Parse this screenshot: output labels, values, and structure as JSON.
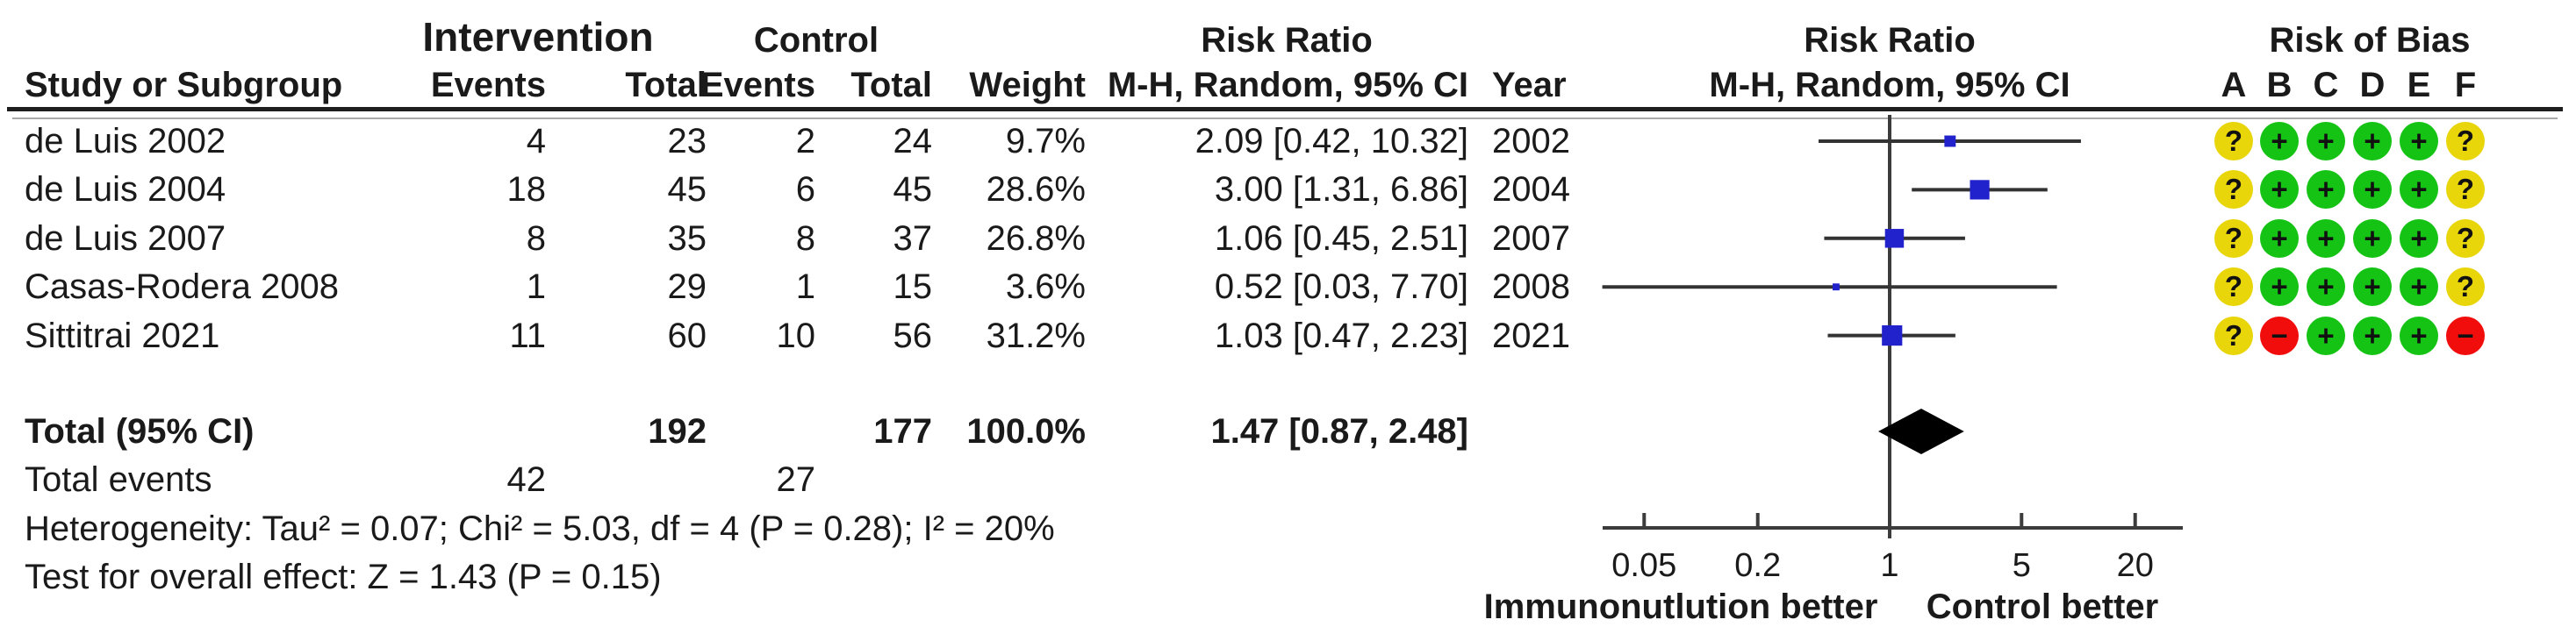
{
  "group_header": {
    "intervention": "Intervention",
    "control": "Control",
    "risk_ratio_table": "Risk Ratio",
    "risk_ratio_plot": "Risk Ratio",
    "risk_of_bias": "Risk of Bias"
  },
  "column_header": {
    "study": "Study or Subgroup",
    "int_events": "Events",
    "int_total": "Total",
    "ctl_events": "Events",
    "ctl_total": "Total",
    "weight": "Weight",
    "mh_random_ci": "M-H, Random, 95% CI",
    "year": "Year",
    "mh_random_ci_plot": "M-H, Random, 95% CI",
    "rob_letters": [
      "A",
      "B",
      "C",
      "D",
      "E",
      "F"
    ]
  },
  "chart_data": {
    "type": "forest",
    "effect_measure": "Risk Ratio",
    "model": "M-H, Random, 95% CI",
    "x_scale": "log",
    "x_ticks": [
      0.05,
      0.2,
      1,
      5,
      20
    ],
    "x_tick_labels": [
      "0.05",
      "0.2",
      "1",
      "5",
      "20"
    ],
    "null_line": 1,
    "footer_left": "Immunonutlution better",
    "footer_right": "Control better",
    "studies": [
      {
        "study": "de Luis 2002",
        "int_events": "4",
        "int_total": "23",
        "ctl_events": "2",
        "ctl_total": "24",
        "weight_label": "9.7%",
        "weight_pct": 9.7,
        "rr": 2.09,
        "ci_low": 0.42,
        "ci_high": 10.32,
        "ci_label": "2.09 [0.42, 10.32]",
        "year": "2002",
        "risk_of_bias": [
          "unclear",
          "low",
          "low",
          "low",
          "low",
          "unclear"
        ]
      },
      {
        "study": "de Luis 2004",
        "int_events": "18",
        "int_total": "45",
        "ctl_events": "6",
        "ctl_total": "45",
        "weight_label": "28.6%",
        "weight_pct": 28.6,
        "rr": 3.0,
        "ci_low": 1.31,
        "ci_high": 6.86,
        "ci_label": "3.00 [1.31, 6.86]",
        "year": "2004",
        "risk_of_bias": [
          "unclear",
          "low",
          "low",
          "low",
          "low",
          "unclear"
        ]
      },
      {
        "study": "de Luis 2007",
        "int_events": "8",
        "int_total": "35",
        "ctl_events": "8",
        "ctl_total": "37",
        "weight_label": "26.8%",
        "weight_pct": 26.8,
        "rr": 1.06,
        "ci_low": 0.45,
        "ci_high": 2.51,
        "ci_label": "1.06 [0.45, 2.51]",
        "year": "2007",
        "risk_of_bias": [
          "unclear",
          "low",
          "low",
          "low",
          "low",
          "unclear"
        ]
      },
      {
        "study": "Casas-Rodera 2008",
        "int_events": "1",
        "int_total": "29",
        "ctl_events": "1",
        "ctl_total": "15",
        "weight_label": "3.6%",
        "weight_pct": 3.6,
        "rr": 0.52,
        "ci_low": 0.03,
        "ci_high": 7.7,
        "ci_label": "0.52 [0.03, 7.70]",
        "year": "2008",
        "risk_of_bias": [
          "unclear",
          "low",
          "low",
          "low",
          "low",
          "unclear"
        ]
      },
      {
        "study": "Sittitrai 2021",
        "int_events": "11",
        "int_total": "60",
        "ctl_events": "10",
        "ctl_total": "56",
        "weight_label": "31.2%",
        "weight_pct": 31.2,
        "rr": 1.03,
        "ci_low": 0.47,
        "ci_high": 2.23,
        "ci_label": "1.03 [0.47, 2.23]",
        "year": "2021",
        "risk_of_bias": [
          "unclear",
          "high",
          "low",
          "low",
          "low",
          "high"
        ]
      }
    ],
    "total": {
      "label": "Total (95% CI)",
      "int_total": "192",
      "ctl_total": "177",
      "weight_label": "100.0%",
      "rr": 1.47,
      "ci_low": 0.87,
      "ci_high": 2.48,
      "ci_label": "1.47 [0.87, 2.48]"
    },
    "total_events": {
      "label": "Total events",
      "int_events": "42",
      "ctl_events": "27"
    },
    "heterogeneity": "Heterogeneity: Tau² = 0.07; Chi² = 5.03, df = 4 (P = 0.28); I² = 20%",
    "overall_effect": "Test for overall effect: Z = 1.43 (P = 0.15)"
  },
  "colors": {
    "square": "#2222cc",
    "diamond": "#000000",
    "ci_line": "#333333",
    "axis_line": "#3c3c3c",
    "rob_low": "#15c315",
    "rob_unclear": "#e8d50a",
    "rob_high": "#f20d0d"
  },
  "rob_symbols": {
    "low": "+",
    "unclear": "?",
    "high": "−"
  }
}
